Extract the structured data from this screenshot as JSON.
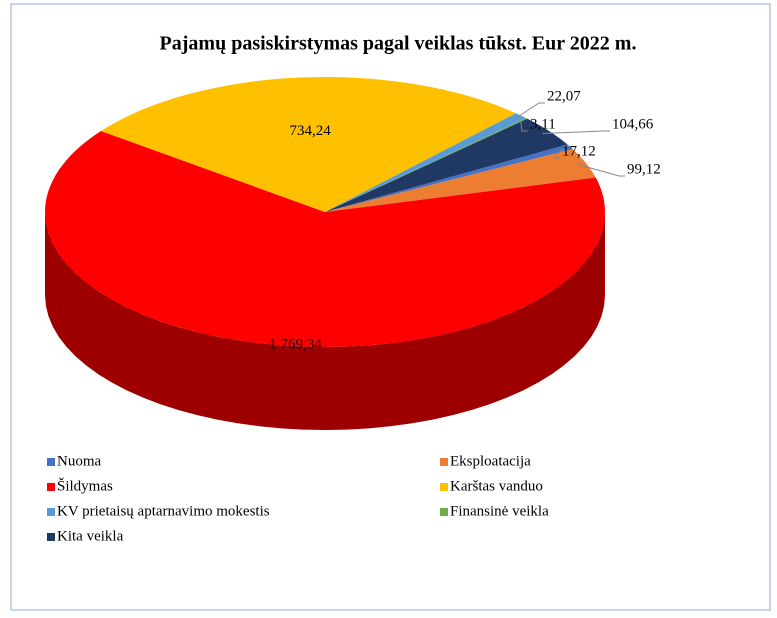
{
  "chart_data": {
    "type": "pie",
    "title": "Pajamų pasiskirstymas pagal veiklas tūkst. Eur 2022 m.",
    "categories": [
      "Nuoma",
      "Eksploatacija",
      "Šildymas",
      "Karštas vanduo",
      "KV prietaisų aptarnavimo mokestis",
      "Finansinė veikla",
      "Kita veikla"
    ],
    "values": [
      17.12,
      99.12,
      1769.34,
      734.24,
      22.07,
      3.11,
      104.66
    ],
    "value_labels": [
      "17,12",
      "99,12",
      "1 769,34",
      "734,24",
      "22,07",
      "3,11",
      "104,66"
    ],
    "colors": [
      "#4472c4",
      "#ed7d31",
      "#ff0000",
      "#ffc000",
      "#5b9bd5",
      "#70ad47",
      "#203864"
    ]
  }
}
